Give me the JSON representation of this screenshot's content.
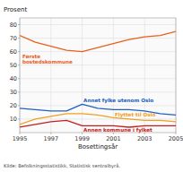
{
  "chart_data": {
    "type": "line",
    "x": [
      1995,
      1996,
      1997,
      1998,
      1999,
      2000,
      2001,
      2002,
      2003,
      2004,
      2005
    ],
    "series": [
      {
        "name": "Første\nbostedskommune",
        "color": "#e8601c",
        "values": [
          72,
          67,
          64,
          61,
          60,
          63,
          66,
          69,
          71,
          72,
          75
        ]
      },
      {
        "name": "Annet fylke utenom Oslo",
        "color": "#2060c0",
        "values": [
          18,
          17,
          16,
          16,
          21,
          18,
          17,
          17,
          16,
          14,
          13
        ]
      },
      {
        "name": "Flyttet til Oslo",
        "color": "#f0a020",
        "values": [
          6,
          10,
          12,
          14,
          14,
          13,
          11,
          10,
          9,
          9,
          8
        ]
      },
      {
        "name": "Annen kommune i fylket",
        "color": "#c02020",
        "values": [
          4,
          6,
          8,
          9,
          5,
          5,
          5,
          4,
          5,
          5,
          5
        ]
      }
    ],
    "xlabel": "Bosettingsår",
    "ylabel": "Prosent",
    "source": "Kilde: Befolkningsstatistikk, Statistisk sentralbyrå.",
    "xlim": [
      1995,
      2005
    ],
    "xticks": [
      1995,
      1997,
      1999,
      2001,
      2003,
      2005
    ],
    "ylim": [
      0,
      85
    ],
    "yticks": [
      10,
      20,
      30,
      40,
      50,
      60,
      70,
      80
    ],
    "grid": true
  }
}
